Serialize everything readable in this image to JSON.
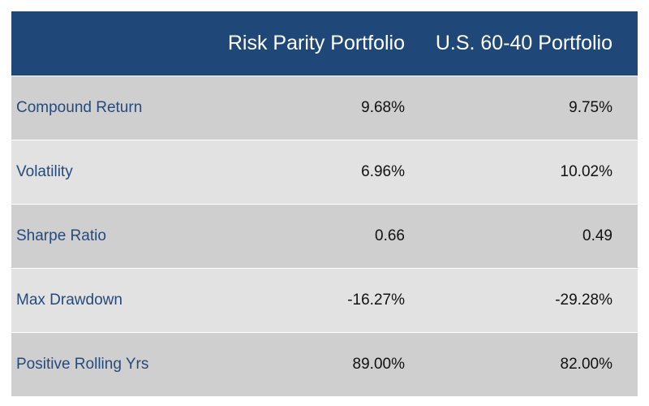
{
  "chart_data": {
    "type": "table",
    "columns": [
      "",
      "Risk Parity Portfolio",
      "U.S. 60-40 Portfolio"
    ],
    "rows": [
      {
        "label": "Compound Return",
        "risk_parity": "9.68%",
        "us_60_40": "9.75%"
      },
      {
        "label": "Volatility",
        "risk_parity": "6.96%",
        "us_60_40": "10.02%"
      },
      {
        "label": "Sharpe Ratio",
        "risk_parity": "0.66",
        "us_60_40": "0.49"
      },
      {
        "label": "Max Drawdown",
        "risk_parity": "-16.27%",
        "us_60_40": "-29.28%"
      },
      {
        "label": "Positive Rolling Yrs",
        "risk_parity": "89.00%",
        "us_60_40": "82.00%"
      }
    ]
  },
  "colors": {
    "header_bg": "#1f4778",
    "row_dark": "#cfcfcf",
    "row_light": "#e2e2e2",
    "label_text": "#264a7b"
  }
}
